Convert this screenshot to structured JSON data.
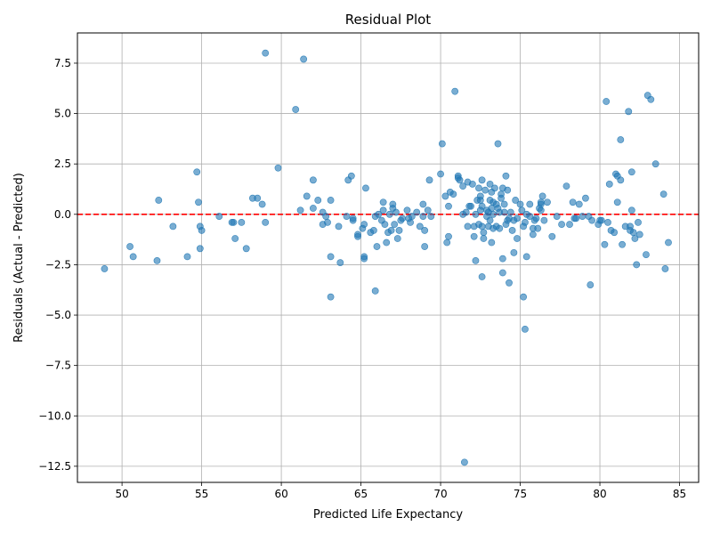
{
  "chart_data": {
    "type": "scatter",
    "title": "Residual Plot",
    "xlabel": "Predicted Life Expectancy",
    "ylabel": "Residuals (Actual - Predicted)",
    "xlim": [
      47.2,
      86.2
    ],
    "ylim": [
      -13.3,
      9.0
    ],
    "xticks": [
      50,
      55,
      60,
      65,
      70,
      75,
      80,
      85
    ],
    "xtick_labels": [
      "50",
      "55",
      "60",
      "65",
      "70",
      "75",
      "80",
      "85"
    ],
    "yticks": [
      -12.5,
      -10.0,
      -7.5,
      -5.0,
      -2.5,
      0.0,
      2.5,
      5.0,
      7.5
    ],
    "ytick_labels": [
      "−12.5",
      "−10.0",
      "−7.5",
      "−5.0",
      "−2.5",
      "0.0",
      "2.5",
      "5.0",
      "7.5"
    ],
    "grid": true,
    "point_color": "#1f77b4",
    "point_alpha": 0.6,
    "reference_line": {
      "y": 0,
      "style": "dashed",
      "color": "#ff0000"
    },
    "points": [
      [
        48.9,
        -2.7
      ],
      [
        50.5,
        -1.6
      ],
      [
        50.7,
        -2.1
      ],
      [
        52.2,
        -2.3
      ],
      [
        52.3,
        0.7
      ],
      [
        53.2,
        -0.6
      ],
      [
        54.1,
        -2.1
      ],
      [
        54.7,
        2.1
      ],
      [
        54.8,
        0.6
      ],
      [
        54.9,
        -1.7
      ],
      [
        54.9,
        -0.6
      ],
      [
        55.0,
        -0.8
      ],
      [
        56.1,
        -0.1
      ],
      [
        56.9,
        -0.4
      ],
      [
        57.0,
        -0.4
      ],
      [
        57.1,
        -1.2
      ],
      [
        57.5,
        -0.4
      ],
      [
        57.8,
        -1.7
      ],
      [
        58.2,
        0.8
      ],
      [
        58.5,
        0.8
      ],
      [
        58.8,
        0.5
      ],
      [
        59.0,
        8.0
      ],
      [
        59.0,
        -0.4
      ],
      [
        59.8,
        2.3
      ],
      [
        60.9,
        5.2
      ],
      [
        61.2,
        0.2
      ],
      [
        61.4,
        7.7
      ],
      [
        61.6,
        0.9
      ],
      [
        62.0,
        0.3
      ],
      [
        62.0,
        1.7
      ],
      [
        62.3,
        0.7
      ],
      [
        62.6,
        0.1
      ],
      [
        62.6,
        -0.5
      ],
      [
        62.8,
        -0.1
      ],
      [
        62.9,
        -0.4
      ],
      [
        63.1,
        -2.1
      ],
      [
        63.1,
        0.7
      ],
      [
        63.1,
        -4.1
      ],
      [
        63.6,
        -0.6
      ],
      [
        63.7,
        -2.4
      ],
      [
        64.1,
        -0.1
      ],
      [
        64.2,
        1.7
      ],
      [
        64.4,
        1.9
      ],
      [
        64.5,
        -0.3
      ],
      [
        64.5,
        -0.2
      ],
      [
        64.8,
        -1.1
      ],
      [
        64.8,
        -1.0
      ],
      [
        65.1,
        -0.7
      ],
      [
        65.2,
        -0.5
      ],
      [
        65.2,
        -2.2
      ],
      [
        65.2,
        -2.1
      ],
      [
        65.3,
        1.3
      ],
      [
        65.6,
        -0.9
      ],
      [
        65.8,
        -0.8
      ],
      [
        65.9,
        -3.8
      ],
      [
        65.9,
        -0.1
      ],
      [
        66.0,
        -1.6
      ],
      [
        66.1,
        0.0
      ],
      [
        66.3,
        -0.3
      ],
      [
        66.4,
        0.2
      ],
      [
        66.4,
        0.6
      ],
      [
        66.5,
        -0.5
      ],
      [
        66.6,
        -1.4
      ],
      [
        66.7,
        -0.9
      ],
      [
        66.8,
        0.0
      ],
      [
        66.9,
        -0.8
      ],
      [
        67.0,
        0.5
      ],
      [
        67.0,
        0.3
      ],
      [
        67.1,
        -0.5
      ],
      [
        67.2,
        0.1
      ],
      [
        67.3,
        -1.2
      ],
      [
        67.4,
        -0.8
      ],
      [
        67.5,
        -0.3
      ],
      [
        67.6,
        -0.2
      ],
      [
        67.9,
        0.2
      ],
      [
        68.0,
        -0.2
      ],
      [
        68.1,
        -0.4
      ],
      [
        68.2,
        -0.1
      ],
      [
        68.5,
        0.1
      ],
      [
        68.7,
        -0.6
      ],
      [
        68.9,
        0.5
      ],
      [
        68.9,
        -0.1
      ],
      [
        69.0,
        -1.6
      ],
      [
        69.0,
        -0.8
      ],
      [
        69.2,
        0.2
      ],
      [
        69.3,
        1.7
      ],
      [
        69.4,
        -0.1
      ],
      [
        70.0,
        2.0
      ],
      [
        70.1,
        3.5
      ],
      [
        70.3,
        0.9
      ],
      [
        70.4,
        -1.4
      ],
      [
        70.5,
        -1.1
      ],
      [
        70.5,
        0.4
      ],
      [
        70.6,
        1.1
      ],
      [
        70.8,
        1.0
      ],
      [
        70.9,
        6.1
      ],
      [
        71.1,
        1.8
      ],
      [
        71.1,
        1.9
      ],
      [
        71.2,
        1.7
      ],
      [
        71.4,
        0.0
      ],
      [
        71.4,
        1.4
      ],
      [
        71.5,
        -12.3
      ],
      [
        71.6,
        0.1
      ],
      [
        71.7,
        -0.6
      ],
      [
        71.7,
        1.6
      ],
      [
        71.8,
        0.4
      ],
      [
        71.9,
        0.4
      ],
      [
        72.0,
        1.5
      ],
      [
        72.1,
        -0.6
      ],
      [
        72.1,
        -1.1
      ],
      [
        72.2,
        0.0
      ],
      [
        72.2,
        -2.3
      ],
      [
        72.3,
        0.7
      ],
      [
        72.4,
        -0.5
      ],
      [
        72.4,
        1.3
      ],
      [
        72.5,
        0.9
      ],
      [
        72.5,
        0.2
      ],
      [
        72.5,
        0.7
      ],
      [
        72.6,
        -3.1
      ],
      [
        72.6,
        -0.6
      ],
      [
        72.6,
        0.4
      ],
      [
        72.6,
        1.7
      ],
      [
        72.7,
        -0.9
      ],
      [
        72.7,
        -1.2
      ],
      [
        72.8,
        1.2
      ],
      [
        72.9,
        0.2
      ],
      [
        72.9,
        -0.1
      ],
      [
        73.0,
        0.1
      ],
      [
        73.0,
        -0.6
      ],
      [
        73.1,
        1.5
      ],
      [
        73.1,
        -0.3
      ],
      [
        73.1,
        0.7
      ],
      [
        73.2,
        -1.4
      ],
      [
        73.2,
        1.1
      ],
      [
        73.2,
        0.3
      ],
      [
        73.3,
        0.6
      ],
      [
        73.3,
        0.0
      ],
      [
        73.3,
        -0.7
      ],
      [
        73.4,
        1.3
      ],
      [
        73.5,
        0.5
      ],
      [
        73.5,
        -0.6
      ],
      [
        73.6,
        3.5
      ],
      [
        73.6,
        0.3
      ],
      [
        73.7,
        0.1
      ],
      [
        73.7,
        -0.7
      ],
      [
        73.8,
        1.0
      ],
      [
        73.8,
        0.8
      ],
      [
        73.9,
        1.3
      ],
      [
        73.9,
        -2.2
      ],
      [
        73.9,
        -2.9
      ],
      [
        74.0,
        0.5
      ],
      [
        74.0,
        0.1
      ],
      [
        74.1,
        1.9
      ],
      [
        74.1,
        -0.5
      ],
      [
        74.2,
        1.2
      ],
      [
        74.2,
        -0.3
      ],
      [
        74.3,
        -0.2
      ],
      [
        74.3,
        -3.4
      ],
      [
        74.4,
        0.1
      ],
      [
        74.5,
        -0.8
      ],
      [
        74.6,
        -0.3
      ],
      [
        74.6,
        -1.9
      ],
      [
        74.7,
        0.7
      ],
      [
        74.8,
        -0.2
      ],
      [
        74.8,
        -1.2
      ],
      [
        75.0,
        0.5
      ],
      [
        75.1,
        0.2
      ],
      [
        75.2,
        -4.1
      ],
      [
        75.2,
        -0.6
      ],
      [
        75.3,
        -5.7
      ],
      [
        75.3,
        -0.4
      ],
      [
        75.4,
        -2.1
      ],
      [
        75.4,
        0.0
      ],
      [
        75.6,
        0.5
      ],
      [
        75.6,
        -0.1
      ],
      [
        75.8,
        -1.0
      ],
      [
        75.8,
        -0.7
      ],
      [
        75.9,
        -0.3
      ],
      [
        76.0,
        -0.2
      ],
      [
        76.1,
        -0.7
      ],
      [
        76.2,
        0.3
      ],
      [
        76.3,
        0.6
      ],
      [
        76.3,
        0.5
      ],
      [
        76.3,
        0.2
      ],
      [
        76.4,
        0.9
      ],
      [
        76.5,
        -0.3
      ],
      [
        76.7,
        0.6
      ],
      [
        77.0,
        -1.1
      ],
      [
        77.3,
        -0.1
      ],
      [
        77.6,
        -0.5
      ],
      [
        77.9,
        1.4
      ],
      [
        78.1,
        -0.5
      ],
      [
        78.3,
        0.6
      ],
      [
        78.4,
        -0.2
      ],
      [
        78.5,
        -0.2
      ],
      [
        78.7,
        0.5
      ],
      [
        78.9,
        -0.1
      ],
      [
        79.1,
        0.8
      ],
      [
        79.3,
        -0.1
      ],
      [
        79.4,
        -3.5
      ],
      [
        79.5,
        -0.3
      ],
      [
        79.9,
        -0.5
      ],
      [
        80.0,
        -0.3
      ],
      [
        80.1,
        -0.3
      ],
      [
        80.3,
        -1.5
      ],
      [
        80.4,
        5.6
      ],
      [
        80.5,
        -0.4
      ],
      [
        80.6,
        1.5
      ],
      [
        80.7,
        -0.8
      ],
      [
        80.9,
        -0.9
      ],
      [
        81.0,
        2.0
      ],
      [
        81.1,
        1.9
      ],
      [
        81.1,
        0.6
      ],
      [
        81.3,
        3.7
      ],
      [
        81.3,
        1.7
      ],
      [
        81.4,
        -1.5
      ],
      [
        81.6,
        -0.6
      ],
      [
        81.8,
        5.1
      ],
      [
        81.9,
        -0.6
      ],
      [
        81.9,
        -0.8
      ],
      [
        82.0,
        2.1
      ],
      [
        82.0,
        0.2
      ],
      [
        82.1,
        -0.9
      ],
      [
        82.2,
        -1.2
      ],
      [
        82.3,
        -2.5
      ],
      [
        82.4,
        -0.4
      ],
      [
        82.5,
        -1.0
      ],
      [
        82.9,
        -2.0
      ],
      [
        83.0,
        5.9
      ],
      [
        83.2,
        5.7
      ],
      [
        83.5,
        2.5
      ],
      [
        84.0,
        1.0
      ],
      [
        84.1,
        -2.7
      ],
      [
        84.3,
        -1.4
      ]
    ]
  }
}
